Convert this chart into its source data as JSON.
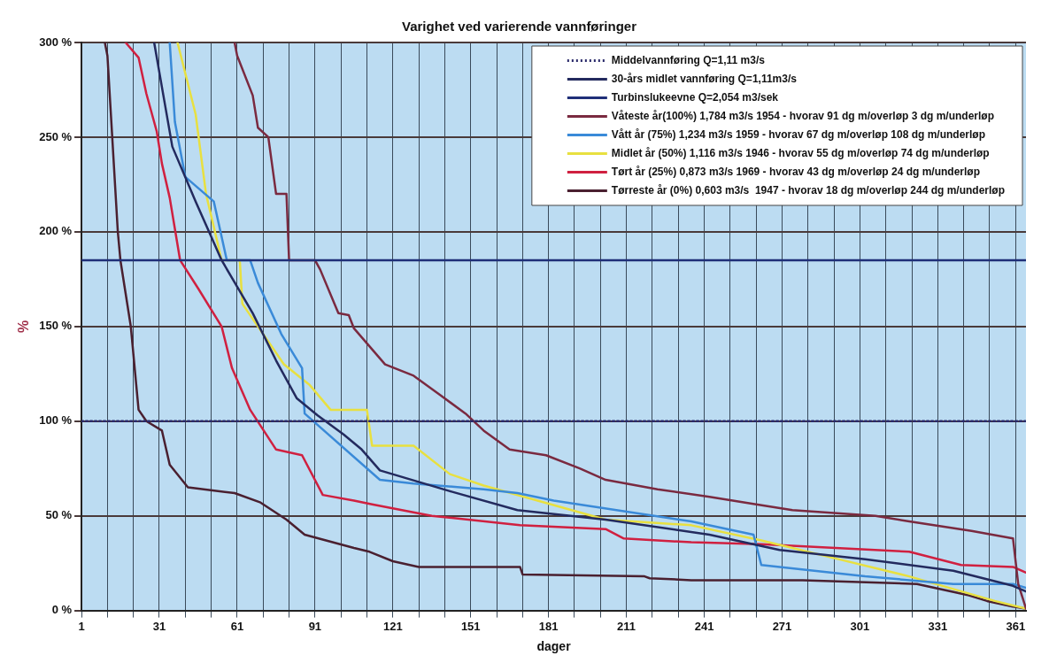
{
  "chart_data": {
    "type": "line",
    "title": "Varighet ved varierende vannføringer",
    "xlabel": "dager",
    "ylabel": "%",
    "xlim": [
      1,
      365
    ],
    "ylim": [
      0,
      300
    ],
    "xticks": [
      1,
      {
        "value": 11,
        "label": null
      },
      {
        "value": 21,
        "label": null
      },
      31,
      {
        "value": 41,
        "label": null
      },
      {
        "value": 51,
        "label": null
      },
      61,
      {
        "value": 71,
        "label": null
      },
      {
        "value": 81,
        "label": null
      },
      91,
      {
        "value": 101,
        "label": null
      },
      {
        "value": 111,
        "label": null
      },
      121,
      {
        "value": 131,
        "label": null
      },
      {
        "value": 141,
        "label": null
      },
      151,
      {
        "value": 161,
        "label": null
      },
      {
        "value": 171,
        "label": null
      },
      181,
      {
        "value": 191,
        "label": null
      },
      {
        "value": 201,
        "label": null
      },
      211,
      {
        "value": 221,
        "label": null
      },
      {
        "value": 231,
        "label": null
      },
      241,
      {
        "value": 251,
        "label": null
      },
      {
        "value": 261,
        "label": null
      },
      271,
      {
        "value": 281,
        "label": null
      },
      {
        "value": 291,
        "label": null
      },
      301,
      {
        "value": 311,
        "label": null
      },
      {
        "value": 321,
        "label": null
      },
      331,
      {
        "value": 341,
        "label": null
      },
      {
        "value": 351,
        "label": null
      },
      361
    ],
    "yticks": [
      {
        "value": 0,
        "label": "0 %"
      },
      {
        "value": 50,
        "label": "50 %"
      },
      {
        "value": 100,
        "label": "100 %"
      },
      {
        "value": 150,
        "label": "150 %"
      },
      {
        "value": 200,
        "label": "200 %"
      },
      {
        "value": 250,
        "label": "250 %"
      },
      {
        "value": 300,
        "label": "300 %"
      }
    ],
    "grid": true,
    "legend": "top right",
    "marker": "none",
    "series": [
      {
        "name": "Middelvannføring Q=1,11 m3/s",
        "color": "#2a2a6a",
        "line_style": "dotted",
        "x": [
          1,
          365
        ],
        "values": [
          100,
          100
        ]
      },
      {
        "name": "30-års midlet vannføring Q=1,11m3/s",
        "color": "#232a5e",
        "line_style": "solid",
        "x": [
          29,
          36,
          45,
          55,
          67,
          76,
          84,
          92,
          102,
          109,
          116,
          143,
          169,
          203,
          243,
          270,
          303,
          337,
          360,
          365
        ],
        "values": [
          300,
          245,
          216,
          185,
          157,
          132,
          112,
          103,
          93,
          85,
          74,
          63,
          53,
          48,
          40,
          32,
          27,
          21,
          13,
          10
        ]
      },
      {
        "name": "Turbinslukeevne Q=2,054 m3/sek",
        "color": "#1f2f78",
        "line_style": "solid",
        "x": [
          1,
          365
        ],
        "values": [
          185,
          185
        ]
      },
      {
        "name": "Våteste år(100%) 1,784 m3/s 1954 - hvorav 91 dg m/overløp 3 dg m/underløp",
        "color": "#7a2a40",
        "line_style": "solid",
        "x": [
          60,
          61,
          67,
          69,
          73,
          76,
          80,
          81,
          91,
          93,
          100,
          104,
          106,
          118,
          129,
          139,
          149,
          156,
          166,
          180,
          193,
          203,
          223,
          243,
          261,
          275,
          307,
          320,
          344,
          360,
          362,
          365
        ],
        "values": [
          300,
          293,
          272,
          255,
          250,
          220,
          220,
          185,
          185,
          180,
          157,
          156,
          149,
          130,
          124,
          114,
          104,
          95,
          85,
          82,
          75,
          69,
          64,
          60,
          56,
          53,
          50,
          47,
          42,
          38,
          14,
          1
        ]
      },
      {
        "name": "Vått år (75%) 1,234 m3/s 1959 - hvorav 67 dg m/overløp 108 dg m/underløp",
        "color": "#3a8ad8",
        "line_style": "solid",
        "x": [
          35,
          37,
          41,
          52,
          57,
          66,
          69,
          78,
          86,
          87,
          116,
          129,
          156,
          169,
          183,
          236,
          260,
          263,
          303,
          337,
          360,
          365
        ],
        "values": [
          300,
          258,
          229,
          216,
          185,
          185,
          173,
          146,
          128,
          104,
          69,
          67,
          64,
          62,
          58,
          47,
          40,
          24,
          18,
          14,
          14,
          12
        ]
      },
      {
        "name": "Midlet år (50%) 1,116 m3/s 1946 - hvorav 55 dg m/overløp 74 dg m/underløp",
        "color": "#e8e040",
        "line_style": "solid",
        "x": [
          38,
          45,
          49,
          55,
          62,
          63,
          79,
          89,
          97,
          111,
          113,
          129,
          143,
          156,
          203,
          236,
          263,
          293,
          320,
          353,
          365
        ],
        "values": [
          300,
          262,
          220,
          185,
          185,
          162,
          130,
          119,
          106,
          106,
          87,
          87,
          72,
          66,
          48,
          45,
          37,
          27,
          18,
          5,
          1
        ]
      },
      {
        "name": "Tørt år (25%) 0,873 m3/s 1969 - hvorav 43 dg m/overløp 24 dg m/underløp",
        "color": "#d02040",
        "line_style": "solid",
        "x": [
          18,
          23,
          26,
          30,
          32,
          35,
          39,
          46,
          55,
          59,
          66,
          76,
          86,
          94,
          106,
          113,
          136,
          170,
          203,
          210,
          236,
          263,
          320,
          340,
          360,
          365
        ],
        "values": [
          300,
          292,
          273,
          253,
          236,
          218,
          185,
          170,
          150,
          128,
          106,
          85,
          82,
          61,
          58,
          56,
          50,
          45,
          43,
          38,
          36,
          35,
          31,
          24,
          23,
          20
        ]
      },
      {
        "name": "Tørreste år (0%) 0,603 m3/s  1947 - hvorav 18 dg m/overløp 244 dg m/underløp",
        "color": "#4a2030",
        "line_style": "solid",
        "x": [
          10,
          11,
          15,
          16,
          20,
          23,
          26,
          32,
          35,
          42,
          60,
          70,
          80,
          87,
          106,
          112,
          121,
          131,
          170,
          171,
          218,
          220,
          236,
          279,
          323,
          343,
          350,
          360,
          365
        ],
        "values": [
          300,
          293,
          200,
          185,
          150,
          106,
          100,
          95,
          77,
          65,
          62,
          57,
          48,
          40,
          33,
          31,
          26,
          23,
          23,
          19,
          18,
          17,
          16,
          16,
          14,
          8,
          5,
          2,
          1
        ]
      }
    ]
  }
}
